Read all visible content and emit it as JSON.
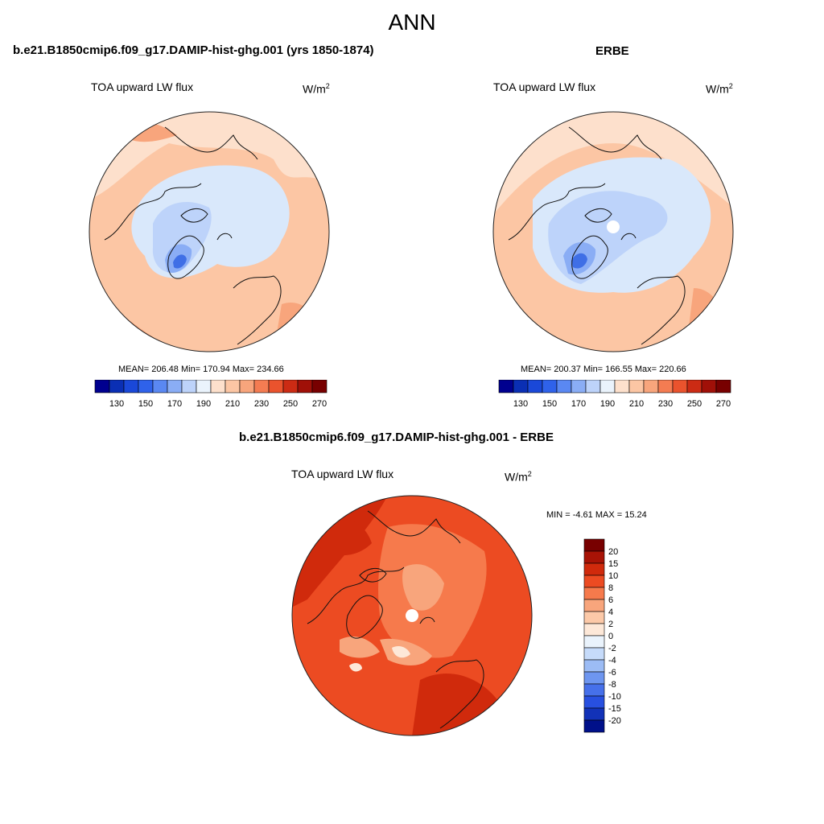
{
  "figure": {
    "title": "ANN"
  },
  "panel_left": {
    "title": "b.e21.B1850cmip6.f09_g17.DAMIP-hist-ghg.001 (yrs 1850-1874)",
    "variable": "TOA upward LW flux",
    "units_base": "W/m",
    "units_exp": "2",
    "stats": "MEAN= 206.48  Min= 170.94  Max= 234.66"
  },
  "panel_right": {
    "title": "ERBE",
    "variable": "TOA upward LW flux",
    "units_base": "W/m",
    "units_exp": "2",
    "stats": "MEAN= 200.37  Min= 166.55  Max= 220.66"
  },
  "panel_diff": {
    "title": "b.e21.B1850cmip6.f09_g17.DAMIP-hist-ghg.001 - ERBE",
    "variable": "TOA upward LW flux",
    "units_base": "W/m",
    "units_exp": "2",
    "stats": "MIN =  -4.61 MAX =  15.24"
  },
  "abs_colorbar": {
    "colors": [
      "#00008f",
      "#0a2fb4",
      "#1a48d8",
      "#2f62ea",
      "#5a88f2",
      "#8aadf5",
      "#bdd3fa",
      "#eaf3fc",
      "#fde0cc",
      "#fcc6a4",
      "#f8a57c",
      "#f47c52",
      "#ea532d",
      "#cc2b14",
      "#a01008",
      "#780000"
    ],
    "labels": [
      "130",
      "150",
      "170",
      "190",
      "210",
      "230",
      "250",
      "270"
    ]
  },
  "diff_colorbar": {
    "colors": [
      "#780000",
      "#a81306",
      "#d02a0c",
      "#ec4b22",
      "#f67a4c",
      "#f8a57c",
      "#fcc9a8",
      "#fde8d8",
      "#eaf3fc",
      "#c6dbfa",
      "#9cbcf5",
      "#6e96f0",
      "#4670ea",
      "#2850e0",
      "#1232b8",
      "#00108a"
    ],
    "labels": [
      "20",
      "15",
      "10",
      "8",
      "6",
      "4",
      "2",
      "0",
      "-2",
      "-4",
      "-6",
      "-8",
      "-10",
      "-15",
      "-20"
    ]
  },
  "map_colors": {
    "warm_dark": "#f47c52",
    "warm_mid": "#f8a57c",
    "warm_light": "#fcc6a4",
    "warm_pale": "#fde0cc",
    "ice_pale": "#d9e8fb",
    "ice_light": "#bdd3fa",
    "ice_mid": "#8aadf5",
    "ice_dark": "#3f6fe6",
    "diff_dark": "#d02a0c",
    "diff_base": "#ec4b22",
    "diff_mid": "#f67a4c",
    "diff_light": "#f8a57c",
    "diff_pale": "#fde8d8"
  }
}
